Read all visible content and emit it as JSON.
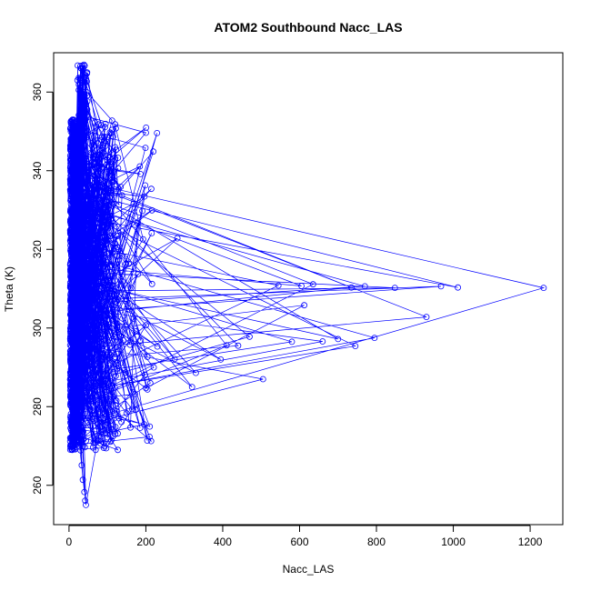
{
  "chart_data": {
    "type": "scatter",
    "title": "ATOM2 Southbound Nacc_LAS",
    "xlabel": "Nacc_LAS",
    "ylabel": "Theta (K)",
    "xlim": [
      -40,
      1285
    ],
    "ylim": [
      250,
      370
    ],
    "xticks": [
      0,
      200,
      400,
      600,
      800,
      1000,
      1200
    ],
    "yticks": [
      260,
      280,
      300,
      320,
      340,
      360
    ],
    "grid": false,
    "legend": "none",
    "marker": "open-circle",
    "connected": true,
    "color": "#0000ff",
    "seed": 7,
    "points_sampled": 1600,
    "series": [
      {
        "outliers": [
          {
            "x": 1235,
            "y": 310.2
          },
          {
            "x": 1012,
            "y": 310.3
          },
          {
            "x": 968,
            "y": 310.6
          },
          {
            "x": 930,
            "y": 302.8
          },
          {
            "x": 848,
            "y": 310.2
          },
          {
            "x": 795,
            "y": 297.5
          },
          {
            "x": 770,
            "y": 310.6
          },
          {
            "x": 745,
            "y": 295.4
          },
          {
            "x": 735,
            "y": 310.3
          },
          {
            "x": 700,
            "y": 297.2
          },
          {
            "x": 660,
            "y": 296.6
          },
          {
            "x": 635,
            "y": 311.1
          },
          {
            "x": 612,
            "y": 305.8
          },
          {
            "x": 605,
            "y": 310.7
          },
          {
            "x": 580,
            "y": 296.5
          },
          {
            "x": 545,
            "y": 310.8
          },
          {
            "x": 505,
            "y": 287.0
          },
          {
            "x": 470,
            "y": 297.8
          },
          {
            "x": 440,
            "y": 295.5
          },
          {
            "x": 410,
            "y": 295.6
          },
          {
            "x": 395,
            "y": 292.0
          },
          {
            "x": 330,
            "y": 288.6
          },
          {
            "x": 320,
            "y": 285.0
          },
          {
            "x": 282,
            "y": 322.8
          },
          {
            "x": 275,
            "y": 292.1
          },
          {
            "x": 230,
            "y": 295.3
          },
          {
            "x": 215,
            "y": 324.1
          },
          {
            "x": 185,
            "y": 274.6
          },
          {
            "x": 160,
            "y": 274.7
          },
          {
            "x": 120,
            "y": 351.8
          },
          {
            "x": 95,
            "y": 351.9
          },
          {
            "x": 95,
            "y": 276.8
          },
          {
            "x": 44,
            "y": 255.0
          },
          {
            "x": 42,
            "y": 256.1
          },
          {
            "x": 40,
            "y": 258.3
          },
          {
            "x": 36,
            "y": 261.4
          },
          {
            "x": 33,
            "y": 265.1
          },
          {
            "x": 30,
            "y": 268.9
          }
        ]
      }
    ]
  }
}
